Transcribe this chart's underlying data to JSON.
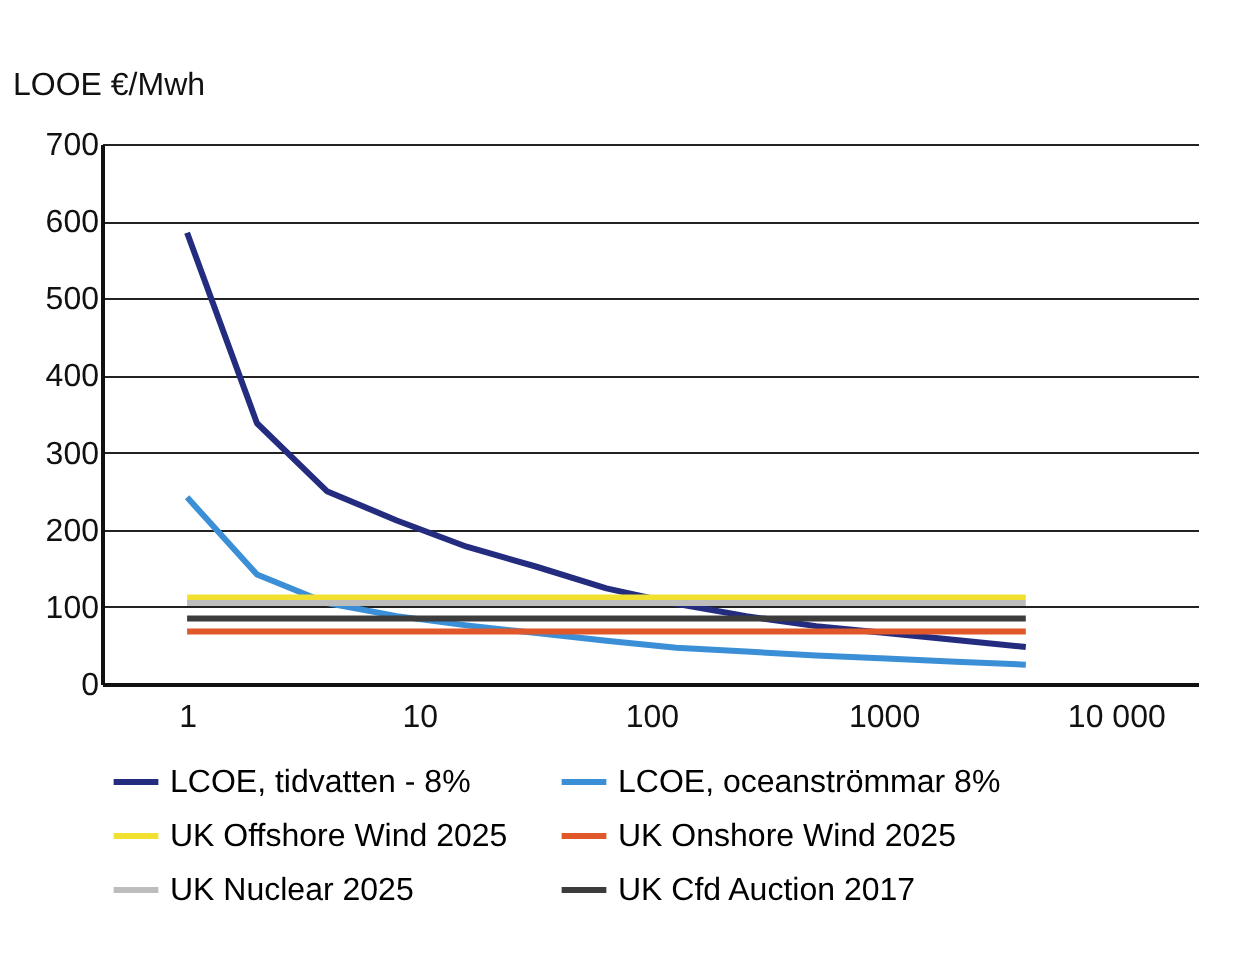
{
  "chart_data": {
    "type": "line",
    "ylabel": "LOOE €/Mwh",
    "x": [
      1,
      2,
      4,
      8,
      16,
      32,
      64,
      128,
      256,
      512,
      1024,
      2048,
      4096
    ],
    "log": "x",
    "xlim": [
      0.43,
      22600
    ],
    "xticks": [
      1,
      10,
      100,
      1000,
      {
        "value": 10000,
        "label": "10 000"
      }
    ],
    "ylim": [
      0,
      700
    ],
    "yticks": [
      0,
      100,
      200,
      300,
      400,
      500,
      600,
      700
    ],
    "grid": "y",
    "legend": "bottom",
    "marker": "none",
    "line_style": "solid",
    "series": [
      {
        "name": "LCOE, tidvatten - 8%",
        "color": "#232c7f",
        "values": [
          585,
          338,
          250,
          212,
          178,
          152,
          124,
          104,
          88,
          75,
          66,
          57,
          48
        ]
      },
      {
        "name": "LCOE, oceanströmmar 8%",
        "color": "#3a8fd6",
        "values": [
          242,
          142,
          105,
          88,
          76,
          66,
          56,
          47,
          42,
          37,
          33,
          29,
          25
        ]
      },
      {
        "name": "UK Offshore Wind 2025",
        "color": "#f2e030",
        "values": [
          112,
          112,
          112,
          112,
          112,
          112,
          112,
          112,
          112,
          112,
          112,
          112,
          112
        ]
      },
      {
        "name": "UK Onshore Wind 2025",
        "color": "#e0582a",
        "values": [
          68,
          68,
          68,
          68,
          68,
          68,
          68,
          68,
          68,
          68,
          68,
          68,
          68
        ]
      },
      {
        "name": "UK Nuclear 2025",
        "color": "#bdbdbd",
        "values": [
          105,
          105,
          105,
          105,
          105,
          105,
          105,
          105,
          105,
          105,
          105,
          105,
          105
        ]
      },
      {
        "name": "UK Cfd Auction 2017",
        "color": "#3c3c3c",
        "values": [
          85,
          85,
          85,
          85,
          85,
          85,
          85,
          85,
          85,
          85,
          85,
          85,
          85
        ]
      }
    ]
  }
}
